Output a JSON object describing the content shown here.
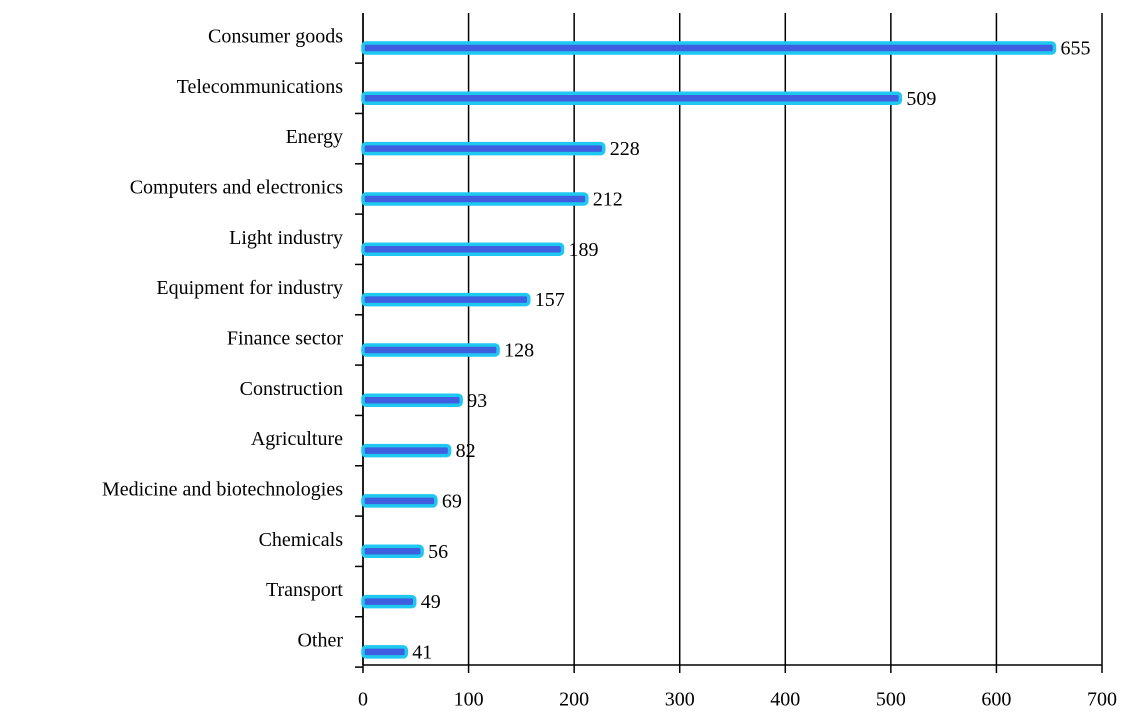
{
  "chart_data": {
    "type": "bar",
    "orientation": "horizontal",
    "categories": [
      "Consumer goods",
      "Telecommunications",
      "Energy",
      "Computers and electronics",
      "Light industry",
      "Equipment for industry",
      "Finance sector",
      "Construction",
      "Agriculture",
      "Medicine and biotechnologies",
      "Chemicals",
      "Transport",
      "Other"
    ],
    "values": [
      655,
      509,
      228,
      212,
      189,
      157,
      128,
      93,
      82,
      69,
      56,
      49,
      41
    ],
    "color": "#3f5fe0",
    "edge_color": "#1ec8f0",
    "xlim": [
      0,
      700
    ],
    "xticks": [
      0,
      100,
      200,
      300,
      400,
      500,
      600,
      700
    ],
    "grid": true
  }
}
